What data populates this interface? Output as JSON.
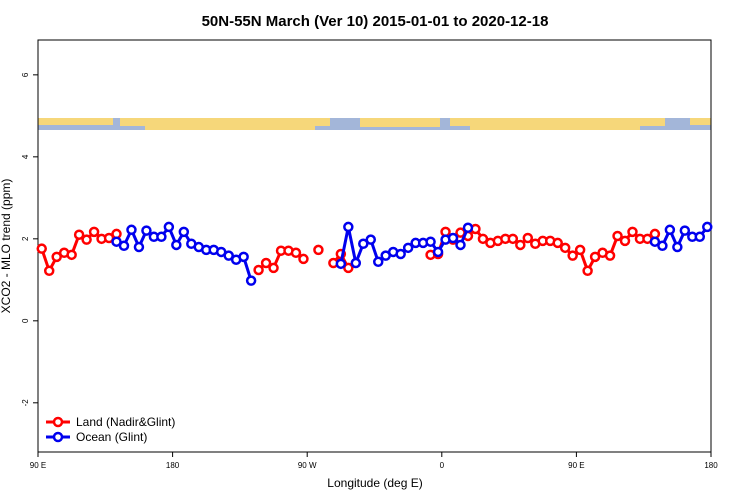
{
  "chart_data": {
    "type": "line",
    "title": "50N-55N March (Ver 10)   2015-01-01 to 2020-12-18",
    "x_label": "Longitude (deg E)",
    "y_label": "XCO2 - MLO trend (ppm)",
    "xlim": [
      90,
      540
    ],
    "xticks": [
      {
        "value": 90,
        "label": "90 E"
      },
      {
        "value": 180,
        "label": "180"
      },
      {
        "value": 270,
        "label": "90 W"
      },
      {
        "value": 360,
        "label": "0"
      },
      {
        "value": 450,
        "label": "90 E"
      },
      {
        "value": 540,
        "label": "180"
      }
    ],
    "ylim": [
      -3.2,
      6.85
    ],
    "yticks": [
      -2,
      0,
      2,
      4,
      6
    ],
    "legend": "bottom-left",
    "x": [
      92.5,
      97.5,
      102.5,
      107.5,
      112.5,
      117.5,
      122.5,
      127.5,
      132.5,
      137.5,
      142.5,
      147.5,
      152.5,
      157.5,
      162.5,
      167.5,
      172.5,
      177.5,
      182.5,
      187.5,
      192.5,
      197.5,
      202.5,
      207.5,
      212.5,
      217.5,
      222.5,
      227.5,
      232.5,
      237.5,
      242.5,
      247.5,
      252.5,
      257.5,
      262.5,
      267.5,
      272.5,
      277.5,
      282.5,
      287.5,
      292.5,
      297.5,
      302.5,
      307.5,
      312.5,
      317.5,
      322.5,
      327.5,
      332.5,
      337.5,
      342.5,
      347.5,
      352.5,
      357.5,
      362.5,
      367.5,
      372.5,
      377.5,
      382.5,
      387.5,
      392.5,
      397.5,
      402.5,
      407.5,
      412.5,
      417.5,
      422.5,
      427.5,
      432.5,
      437.5,
      442.5,
      447.5,
      452.5,
      457.5,
      462.5,
      467.5,
      472.5,
      477.5,
      482.5,
      487.5,
      492.5,
      497.5,
      502.5,
      507.5,
      512.5,
      517.5,
      522.5,
      527.5,
      532.5,
      537.5
    ],
    "series": [
      {
        "name": "Land (Nadir&Glint)",
        "color": "#ff0000",
        "values": [
          1.76,
          1.22,
          1.56,
          1.66,
          1.61,
          2.1,
          1.98,
          2.17,
          2.0,
          2.02,
          2.12,
          null,
          null,
          null,
          null,
          null,
          null,
          null,
          null,
          null,
          null,
          null,
          null,
          null,
          null,
          null,
          null,
          null,
          null,
          1.24,
          1.41,
          1.29,
          1.71,
          1.71,
          1.66,
          1.51,
          null,
          1.73,
          null,
          1.41,
          1.63,
          1.29,
          null,
          null,
          null,
          null,
          null,
          null,
          null,
          null,
          null,
          null,
          1.61,
          1.63,
          2.17,
          1.98,
          2.15,
          2.07,
          2.24,
          2.0,
          1.9,
          1.95,
          2.0,
          2.0,
          1.85,
          2.02,
          1.88,
          1.95,
          1.95,
          1.9,
          1.78,
          1.59,
          1.73,
          1.22,
          1.56,
          1.66,
          1.59,
          2.07,
          1.95,
          2.17,
          2.0,
          2.0,
          2.12,
          null,
          null,
          null,
          null,
          null,
          null,
          null
        ]
      },
      {
        "name": "Ocean (Glint)",
        "color": "#0000ee",
        "values": [
          null,
          null,
          null,
          null,
          null,
          null,
          null,
          null,
          null,
          null,
          1.93,
          1.83,
          2.22,
          1.8,
          2.2,
          2.05,
          2.05,
          2.29,
          1.85,
          2.17,
          1.88,
          1.8,
          1.73,
          1.73,
          1.68,
          1.59,
          1.49,
          1.56,
          0.98,
          null,
          null,
          null,
          null,
          null,
          null,
          null,
          null,
          null,
          null,
          null,
          1.39,
          2.29,
          1.41,
          1.88,
          1.98,
          1.44,
          1.59,
          1.68,
          1.63,
          1.78,
          1.9,
          1.9,
          1.93,
          1.68,
          1.98,
          2.02,
          1.85,
          2.27,
          null,
          null,
          null,
          null,
          null,
          null,
          null,
          null,
          null,
          null,
          null,
          null,
          null,
          null,
          null,
          null,
          null,
          null,
          null,
          null,
          null,
          null,
          null,
          null,
          1.93,
          1.83,
          2.22,
          1.8,
          2.2,
          2.05,
          2.05,
          2.29
        ]
      }
    ]
  }
}
